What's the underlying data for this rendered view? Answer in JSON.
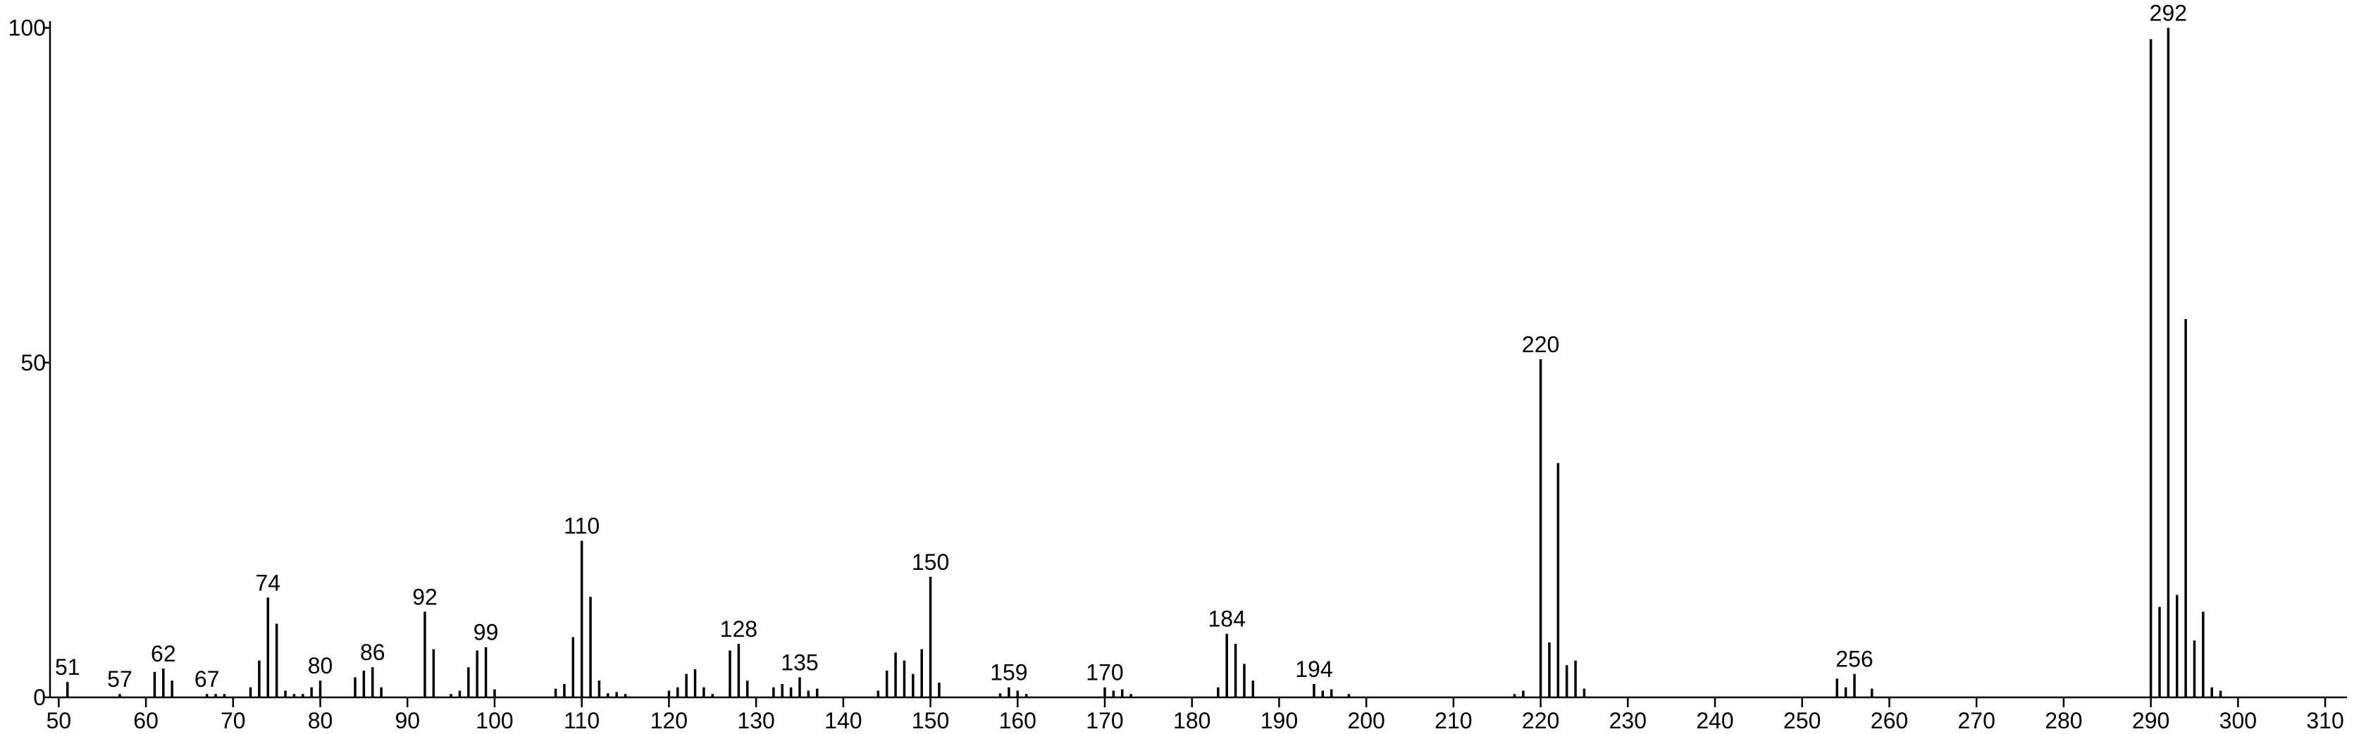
{
  "chart_data": {
    "type": "bar",
    "color": "#000000",
    "x": [
      51,
      57,
      61,
      62,
      63,
      67,
      68,
      69,
      72,
      73,
      74,
      75,
      76,
      77,
      78,
      79,
      80,
      84,
      85,
      86,
      87,
      92,
      93,
      95,
      96,
      97,
      98,
      99,
      100,
      107,
      108,
      109,
      110,
      111,
      112,
      113,
      114,
      115,
      120,
      121,
      122,
      123,
      124,
      125,
      127,
      128,
      129,
      132,
      133,
      134,
      135,
      136,
      137,
      144,
      145,
      146,
      147,
      148,
      149,
      150,
      151,
      158,
      159,
      160,
      161,
      170,
      171,
      172,
      173,
      183,
      184,
      185,
      186,
      187,
      194,
      195,
      196,
      198,
      217,
      218,
      220,
      221,
      222,
      223,
      224,
      225,
      254,
      255,
      256,
      258,
      290,
      291,
      292,
      293,
      294,
      295,
      296,
      297,
      298
    ],
    "values": [
      2.3,
      0.5,
      3.8,
      4.3,
      2.5,
      0.5,
      0.5,
      0.5,
      1.5,
      5.5,
      14.9,
      11,
      1,
      0.5,
      0.5,
      1.5,
      2.5,
      3,
      4,
      4.5,
      1.5,
      12.8,
      7.2,
      0.5,
      1,
      4.5,
      7,
      7.5,
      1.2,
      1.3,
      2,
      9,
      23.4,
      15,
      2.5,
      0.6,
      0.8,
      0.5,
      1,
      1.5,
      3.5,
      4.2,
      1.5,
      0.5,
      7,
      8,
      2.5,
      1.5,
      2,
      1.5,
      3,
      1,
      1.3,
      1,
      4,
      6.7,
      5.5,
      3.5,
      7.2,
      18,
      2.2,
      0.6,
      1.5,
      1,
      0.5,
      1.5,
      1,
      1.2,
      0.5,
      1.5,
      9.5,
      8,
      5,
      2.5,
      2,
      1,
      1.2,
      0.5,
      0.5,
      1,
      50.5,
      8.2,
      35,
      4.8,
      5.5,
      1.3,
      2.8,
      1.5,
      3.5,
      1.3,
      98.3,
      13.5,
      100,
      15.3,
      56.5,
      8.5,
      12.8,
      1.5,
      1
    ],
    "annotations": [
      51,
      57,
      62,
      67,
      74,
      80,
      86,
      92,
      99,
      110,
      128,
      135,
      150,
      159,
      170,
      184,
      194,
      220,
      256,
      292
    ],
    "xlim": [
      49,
      312.5
    ],
    "xticks": [
      50,
      60,
      70,
      80,
      90,
      100,
      110,
      120,
      130,
      140,
      150,
      160,
      170,
      180,
      190,
      200,
      210,
      220,
      230,
      240,
      250,
      260,
      270,
      280,
      290,
      300,
      310
    ],
    "ylim": [
      0,
      101
    ],
    "yticks": [
      0,
      50,
      100
    ]
  }
}
